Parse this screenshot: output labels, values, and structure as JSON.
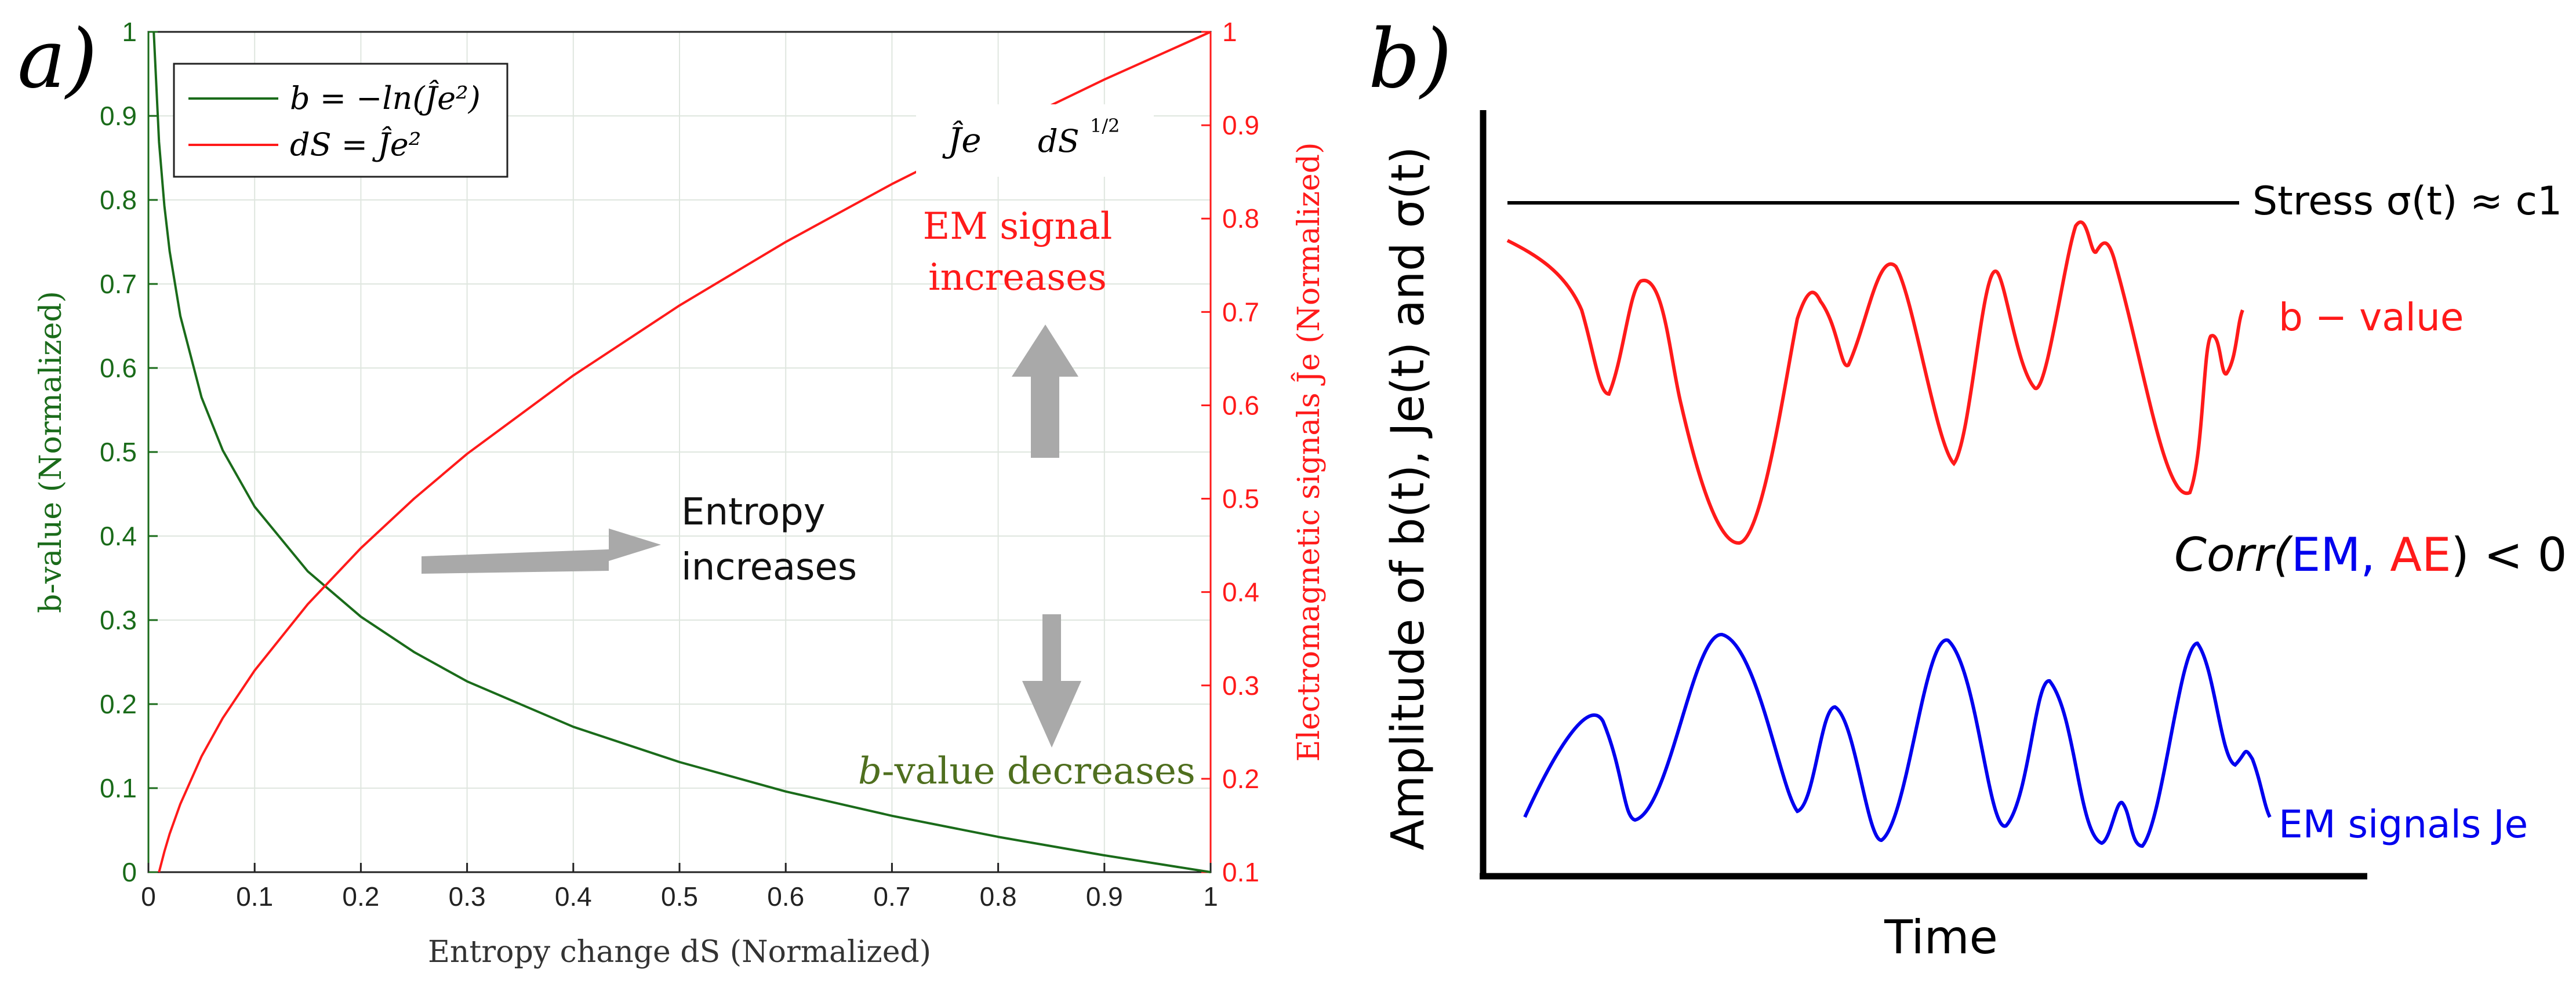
{
  "chart_data": [
    {
      "type": "line",
      "panel_label": "a)",
      "xlabel": "Entropy change dS (Normalized)",
      "ylabel_left": "b-value (Normalized)",
      "ylabel_right": "Electromagnetic signals Ĵe (Normalized)",
      "xlim": [
        0,
        1
      ],
      "ylim_left": [
        0,
        1
      ],
      "ylim_right": [
        0.1,
        1
      ],
      "xticks": [
        "0",
        "0.1",
        "0.2",
        "0.3",
        "0.4",
        "0.5",
        "0.6",
        "0.7",
        "0.8",
        "0.9",
        "1"
      ],
      "yticks_left": [
        "0",
        "0.1",
        "0.2",
        "0.3",
        "0.4",
        "0.5",
        "0.6",
        "0.7",
        "0.8",
        "0.9",
        "1"
      ],
      "yticks_right": [
        "0.1",
        "0.2",
        "0.3",
        "0.4",
        "0.5",
        "0.6",
        "0.7",
        "0.8",
        "0.9",
        "1"
      ],
      "grid": true,
      "legend_position": "top-left",
      "series": [
        {
          "name": "b = −ln(Ĵe²)",
          "color": "#1a6b1a",
          "axis": "left",
          "x": [
            0.005,
            0.01,
            0.015,
            0.02,
            0.03,
            0.05,
            0.07,
            0.1,
            0.15,
            0.2,
            0.25,
            0.3,
            0.4,
            0.5,
            0.6,
            0.7,
            0.8,
            0.9,
            1.0
          ],
          "y": [
            1.0,
            0.869,
            0.793,
            0.739,
            0.662,
            0.565,
            0.502,
            0.435,
            0.358,
            0.304,
            0.262,
            0.227,
            0.173,
            0.131,
            0.096,
            0.067,
            0.042,
            0.02,
            0.0
          ]
        },
        {
          "name": "dS = Ĵe²",
          "color": "#ff1a1a",
          "axis": "right",
          "x": [
            0.01,
            0.015,
            0.02,
            0.03,
            0.05,
            0.07,
            0.1,
            0.15,
            0.2,
            0.25,
            0.3,
            0.4,
            0.5,
            0.6,
            0.7,
            0.8,
            0.9,
            1.0
          ],
          "y": [
            0.1,
            0.122,
            0.141,
            0.173,
            0.224,
            0.265,
            0.316,
            0.387,
            0.447,
            0.5,
            0.548,
            0.632,
            0.707,
            0.775,
            0.837,
            0.894,
            0.949,
            1.0
          ]
        }
      ],
      "annotations": {
        "je_dS_label": [
          "Ĵe",
          "dS",
          "1/2"
        ],
        "em_increases": [
          "EM signal",
          "increases"
        ],
        "entropy_increases": [
          "Entropy",
          "increases"
        ],
        "b_decreases": [
          "b",
          "-value decreases"
        ]
      }
    },
    {
      "type": "line",
      "panel_label": "b)",
      "xlabel": "Time",
      "ylabel": "Amplitude of b(t), Je(t) and σ(t)",
      "series_labels": {
        "stress": "Stress σ(t) ≈ c1",
        "bvalue": "b − value",
        "em": "EM signals Je"
      },
      "correlation_label": [
        "Corr(",
        "EM",
        ",",
        " AE",
        ") < 0"
      ],
      "colors": {
        "stress": "#000000",
        "bvalue": "#ff1a1a",
        "em": "#0000ee"
      }
    }
  ]
}
